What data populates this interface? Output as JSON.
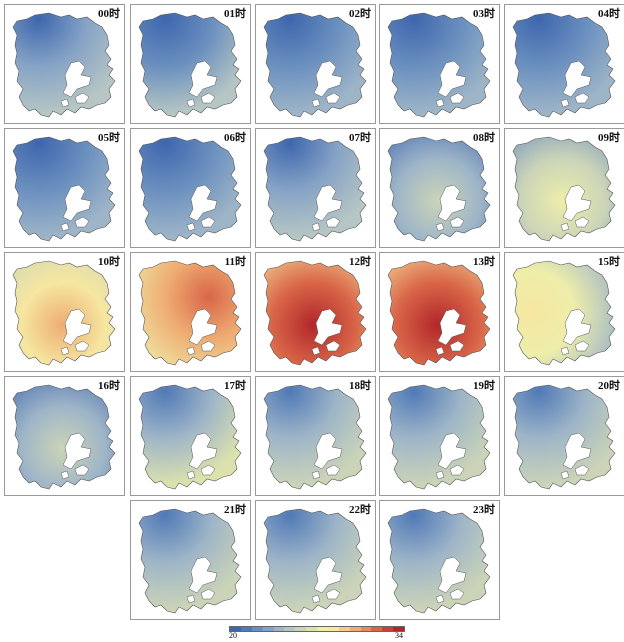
{
  "panels": [
    {
      "label": "00时",
      "level": 0.2,
      "center": "tr"
    },
    {
      "label": "01时",
      "level": 0.18,
      "center": "tr"
    },
    {
      "label": "02时",
      "level": 0.17,
      "center": "tr"
    },
    {
      "label": "03时",
      "level": 0.16,
      "center": "tr"
    },
    {
      "label": "04时",
      "level": 0.15,
      "center": "tr"
    },
    {
      "label": "05时",
      "level": 0.13,
      "center": "tr"
    },
    {
      "label": "06时",
      "level": 0.14,
      "center": "tr"
    },
    {
      "label": "07时",
      "level": 0.2,
      "center": "tr"
    },
    {
      "label": "08时",
      "level": 0.38,
      "center": "mid"
    },
    {
      "label": "09时",
      "level": 0.52,
      "center": "mid"
    },
    {
      "label": "10时",
      "level": 0.72,
      "center": "mid"
    },
    {
      "label": "11时",
      "level": 0.85,
      "center": "ne"
    },
    {
      "label": "12时",
      "level": 0.94,
      "center": "mid"
    },
    {
      "label": "13时",
      "level": 0.96,
      "center": "mid"
    },
    {
      "label": "15时",
      "level": 0.62,
      "center": "w"
    },
    {
      "label": "16时",
      "level": 0.4,
      "center": "mid"
    },
    {
      "label": "17时",
      "level": 0.3,
      "center": "tr"
    },
    {
      "label": "18时",
      "level": 0.28,
      "center": "tr"
    },
    {
      "label": "19时",
      "level": 0.27,
      "center": "tr"
    },
    {
      "label": "20时",
      "level": 0.26,
      "center": "tr"
    },
    {
      "label": "21时",
      "level": 0.27,
      "center": "tr"
    },
    {
      "label": "22时",
      "level": 0.26,
      "center": "tr"
    },
    {
      "label": "23时",
      "level": 0.25,
      "center": "tr"
    }
  ],
  "legend": {
    "min_label": "20",
    "max_label": "34",
    "colors": [
      "#3e66ad",
      "#5079b6",
      "#6a8fbf",
      "#86a3c6",
      "#9eb5c8",
      "#b6c6c4",
      "#cbd4b8",
      "#dde2ad",
      "#eeeeaa",
      "#f6e7a1",
      "#f4cc8a",
      "#eeac72",
      "#e58a5b",
      "#d96648",
      "#c8423a",
      "#b1262b"
    ]
  }
}
